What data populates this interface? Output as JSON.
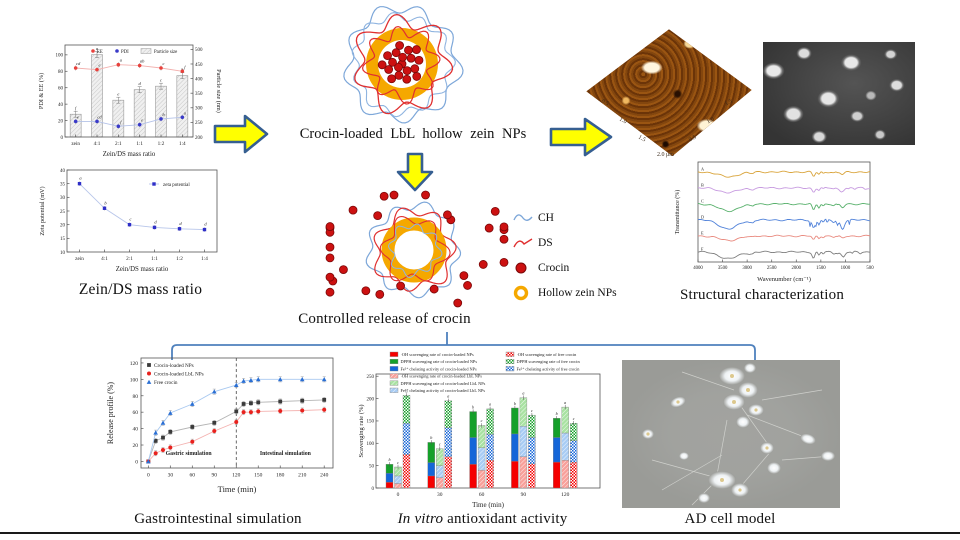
{
  "captions": {
    "mass_ratio": "Zein/DS mass ratio",
    "top_title": "Crocin-loaded LbL hollow zein NPs",
    "release": "Controlled release of crocin",
    "structural": "Structural characterization",
    "gastro": "Gastrointestinal simulation",
    "antioxidant_italic": "In vitro",
    "antioxidant_rest": " antioxidant activity",
    "cell": "AD cell model"
  },
  "np_legend": {
    "items": [
      {
        "label": "CH",
        "icon": "ch-squiggle",
        "color": "#7da7d9"
      },
      {
        "label": "DS",
        "icon": "ds-squiggle",
        "color": "#e03030"
      },
      {
        "label": "Crocin",
        "icon": "crocin-dot",
        "color": "#cc1111"
      },
      {
        "label": "Hollow zein NPs",
        "icon": "hollow-zein-ring",
        "color": "#f5a800"
      }
    ]
  },
  "afm": {
    "edge_ticks_left": [
      "0.5",
      "1.0",
      "1.5"
    ],
    "edge_ticks_right": [
      "1.5",
      "1.0",
      "0.5"
    ],
    "scale_label": "2.0 μm"
  },
  "arrows": {
    "fill": "#ffff00",
    "stroke": "#365f91"
  },
  "connector_color": "#4f81bd",
  "chart_data": [
    {
      "id": "particle",
      "type": "bar",
      "categories": [
        "zein",
        "4:1",
        "2:1",
        "1:1",
        "1:2",
        "1:4"
      ],
      "xlabel": "Zein/DS mass ratio",
      "ylabel_left": "PDI & EE (%)",
      "ylabel_right": "Particle size (nm)",
      "ylim_left": [
        0,
        112
      ],
      "yticks_left": [
        0,
        20,
        40,
        60,
        80,
        100
      ],
      "ylim_right": [
        200,
        515
      ],
      "yticks_right": [
        200,
        250,
        300,
        350,
        400,
        450,
        500
      ],
      "legend": [
        "EE",
        "PDI",
        "Particle size"
      ],
      "bar_values_nm": [
        278,
        482,
        326,
        362,
        374,
        410
      ],
      "bar_letters": [
        "f",
        "a",
        "e",
        "d",
        "c",
        "b"
      ],
      "series": [
        {
          "name": "EE",
          "values": [
            84,
            82,
            88,
            87,
            84,
            80
          ],
          "letters": [
            "cd",
            "e",
            "a",
            "ab",
            "c",
            "f"
          ],
          "color": "#e8413c",
          "line": "#f2b0ae"
        },
        {
          "name": "PDI",
          "values": [
            19,
            19,
            13,
            15,
            22,
            24
          ],
          "letters": [
            "e",
            "cd",
            "f",
            "e",
            "b",
            "a"
          ],
          "color": "#3a3ac8",
          "line": "#b4c2e8"
        }
      ],
      "bar_style": {
        "fill": "#f0f0f0",
        "edge": "#999999"
      }
    },
    {
      "id": "zeta",
      "type": "line",
      "categories": [
        "zein",
        "4:1",
        "2:1",
        "1:1",
        "1:2",
        "1:4"
      ],
      "xlabel": "Zein/DS mass ratio",
      "ylabel": "Zeta potential (mV)",
      "ylim": [
        10,
        40
      ],
      "yticks": [
        10,
        15,
        20,
        25,
        30,
        35,
        40
      ],
      "legend": [
        "zeta potential"
      ],
      "values": [
        35,
        26,
        20,
        19,
        18.5,
        18.2
      ],
      "letters": [
        "a",
        "b",
        "c",
        "d",
        "d",
        "d"
      ],
      "color": "#2e2ec8",
      "line": "#b8c6ea"
    },
    {
      "id": "ftir",
      "type": "line",
      "title": "",
      "xlabel": "Wavenumber (cm⁻¹)",
      "ylabel": "Transmittance (%)",
      "xticks": [
        4000,
        3500,
        3000,
        2500,
        2000,
        1500,
        1000,
        500
      ],
      "series": [
        {
          "label": "A",
          "color": "#d9a43b"
        },
        {
          "label": "B",
          "color": "#c79be0"
        },
        {
          "label": "C",
          "color": "#57b06b"
        },
        {
          "label": "D",
          "color": "#4f81d9"
        },
        {
          "label": "E",
          "color": "#e98b80"
        },
        {
          "label": "F",
          "color": "#7f7f7f"
        }
      ]
    },
    {
      "id": "release",
      "type": "line",
      "xlabel": "Time (min)",
      "ylabel": "Release profile (%)",
      "xticks": [
        0,
        30,
        60,
        90,
        120,
        150,
        180,
        210,
        240
      ],
      "xlim": [
        -10,
        252
      ],
      "ylim": [
        -8,
        126
      ],
      "yticks": [
        0,
        20,
        40,
        60,
        80,
        100,
        120
      ],
      "x": [
        0,
        10,
        20,
        30,
        60,
        90,
        120,
        130,
        140,
        150,
        180,
        210,
        240
      ],
      "series": [
        {
          "name": "Crocin-loaded NPs",
          "marker": "square",
          "color": "#3a3a3a",
          "line": "#b5b5b5",
          "values": [
            0,
            25,
            29,
            36,
            42,
            47,
            61,
            70,
            71,
            72,
            73,
            74,
            75
          ]
        },
        {
          "name": "Crocin-loaded LbL NPs",
          "marker": "circle",
          "color": "#e8211d",
          "line": "#f4b3b1",
          "values": [
            0,
            10,
            14,
            17,
            24,
            37,
            48,
            60,
            60,
            61,
            61.5,
            62,
            63
          ]
        },
        {
          "name": "Free crocin",
          "marker": "triangle",
          "color": "#2a6fd4",
          "line": "#a9c9f0",
          "values": [
            0,
            35,
            47,
            59,
            70,
            85,
            93,
            98,
            99,
            100,
            100,
            100,
            100
          ]
        }
      ],
      "vline_x": 120,
      "annotations": [
        {
          "text": "Gastric simulation",
          "x": 55,
          "y": 8,
          "color": "#2a2ae0"
        },
        {
          "text": "Intestinal simulation",
          "x": 187,
          "y": 8,
          "color": "#2a2ae0"
        }
      ]
    },
    {
      "id": "antioxidant",
      "type": "bar",
      "xlabel": "Time (min)",
      "ylabel": "Scavenging rate (%)",
      "categories": [
        "0",
        "30",
        "60",
        "90",
        "120"
      ],
      "ylim": [
        0,
        255
      ],
      "yticks": [
        0,
        50,
        100,
        150,
        200,
        250
      ],
      "stack_order": [
        "OH",
        "Fe",
        "DPPH"
      ],
      "legend": [
        "·OH scavenging rate of crocin-loaded NPs",
        "DPPH scavenging rate of crocin-loaded NPs",
        "Fe²⁺ chelating activity of crocin-loaded NPs",
        "·OH scavenging rate of crocin-loaded LbL NPs",
        "DPPH scavenging rate of crocin-loaded LbL NPs",
        "Fe²⁺ chelating activity of crocin-loaded LbL NPs",
        "·OH scavenging rate of free crocin",
        "DPPH scavenging rate of free crocin",
        "Fe²⁺ chelating activity of free crocin"
      ],
      "groups": [
        {
          "name": "crocin-loaded NPs",
          "style": "solid",
          "OH": [
            13,
            27,
            53,
            60,
            58
          ],
          "Fe": [
            20,
            30,
            60,
            61,
            55
          ],
          "DPPH": [
            20,
            45,
            58,
            58,
            43
          ]
        },
        {
          "name": "crocin-loaded LbL NPs",
          "style": "light",
          "OH": [
            10,
            23,
            40,
            70,
            62
          ],
          "Fe": [
            17,
            27,
            50,
            68,
            61
          ],
          "DPPH": [
            20,
            38,
            50,
            64,
            58
          ]
        },
        {
          "name": "free crocin",
          "style": "hatch",
          "OH": [
            75,
            70,
            62,
            54,
            58
          ],
          "Fe": [
            70,
            65,
            58,
            59,
            48
          ],
          "DPPH": [
            62,
            60,
            57,
            50,
            39
          ]
        }
      ],
      "letters": [
        [
          "b",
          "c",
          "a"
        ],
        [
          "b",
          "c",
          "a"
        ],
        [
          "b",
          "c",
          "a"
        ],
        [
          "b",
          "a",
          "c"
        ],
        [
          "b",
          "a",
          "c"
        ]
      ],
      "colors": {
        "OH": "#f50000",
        "Fe": "#1566d8",
        "DPPH": "#15a02a",
        "OH_light": "#f8a09a",
        "Fe_light": "#a8ccf4",
        "DPPH_light": "#a9e2a2"
      }
    }
  ]
}
